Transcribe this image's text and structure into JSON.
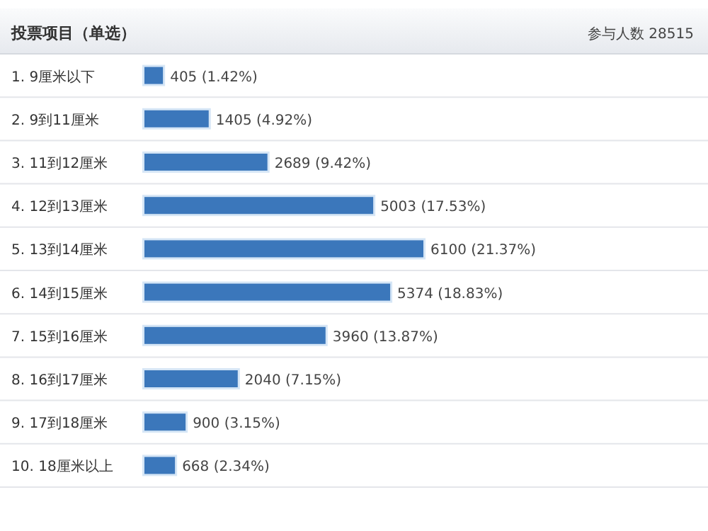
{
  "chart_data": {
    "type": "bar",
    "orientation": "horizontal",
    "title": "投票项目（单选）",
    "subtitle": "参与人数 28515",
    "categories": [
      "1. 9厘米以下",
      "2. 9到11厘米",
      "3. 11到12厘米",
      "4. 12到13厘米",
      "5. 13到14厘米",
      "6. 14到15厘米",
      "7. 15到16厘米",
      "8. 16到17厘米",
      "9. 17到18厘米",
      "10. 18厘米以上"
    ],
    "values": [
      405,
      1405,
      2689,
      5003,
      6100,
      5374,
      3960,
      2040,
      900,
      668
    ],
    "value_labels": [
      "405 (1.42%)",
      "1405 (4.92%)",
      "2689 (9.42%)",
      "5003 (17.53%)",
      "6100 (21.37%)",
      "5374 (18.83%)",
      "3960 (13.87%)",
      "2040 (7.15%)",
      "900 (3.15%)",
      "668 (2.34%)"
    ],
    "color": "#3b77bb"
  }
}
